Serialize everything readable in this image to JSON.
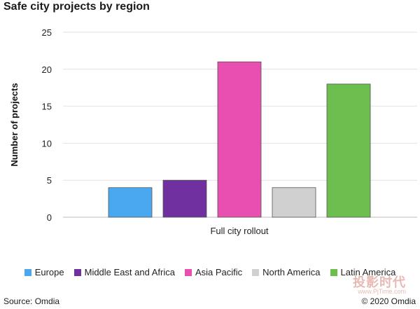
{
  "chart_data": {
    "type": "bar",
    "title": "Safe city projects by region",
    "xlabel": "",
    "ylabel": "Number of projects",
    "categories": [
      "Full city rollout"
    ],
    "ylim": [
      0,
      25
    ],
    "yticks": [
      0,
      5,
      10,
      15,
      20,
      25
    ],
    "grid": true,
    "legend_position": "bottom",
    "series": [
      {
        "name": "Europe",
        "values": [
          4
        ],
        "color": "#4aa8f0"
      },
      {
        "name": "Middle East and Africa",
        "values": [
          5
        ],
        "color": "#7030a0"
      },
      {
        "name": "Asia Pacific",
        "values": [
          21
        ],
        "color": "#e94fb0"
      },
      {
        "name": "North America",
        "values": [
          4
        ],
        "color": "#d0d0d0"
      },
      {
        "name": "Latin America",
        "values": [
          18
        ],
        "color": "#6cbf4f"
      }
    ]
  },
  "footer": {
    "source": "Source: Omdia",
    "copyright": "© 2020 Omdia"
  },
  "watermark": {
    "main": "投影时代",
    "sub": "www.PjTime.com"
  }
}
